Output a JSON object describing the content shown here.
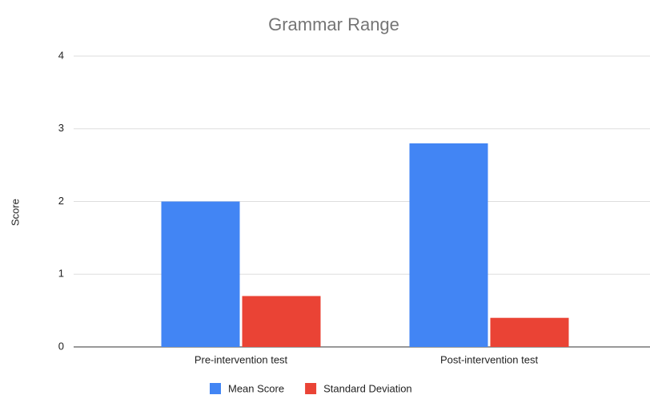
{
  "chart_data": {
    "type": "bar",
    "title": "Grammar Range",
    "y_label": "Score",
    "categories": [
      "Pre-intervention test",
      "Post-intervention test"
    ],
    "series": [
      {
        "name": "Mean Score",
        "color": "#4285f4",
        "values": [
          2,
          2.8
        ]
      },
      {
        "name": "Standard Deviation",
        "color": "#ea4335",
        "values": [
          0.7,
          0.4
        ]
      }
    ],
    "ylim": [
      0,
      4
    ],
    "yticks": [
      0,
      1,
      2,
      3,
      4
    ],
    "grid": true,
    "legend": "bottom"
  }
}
